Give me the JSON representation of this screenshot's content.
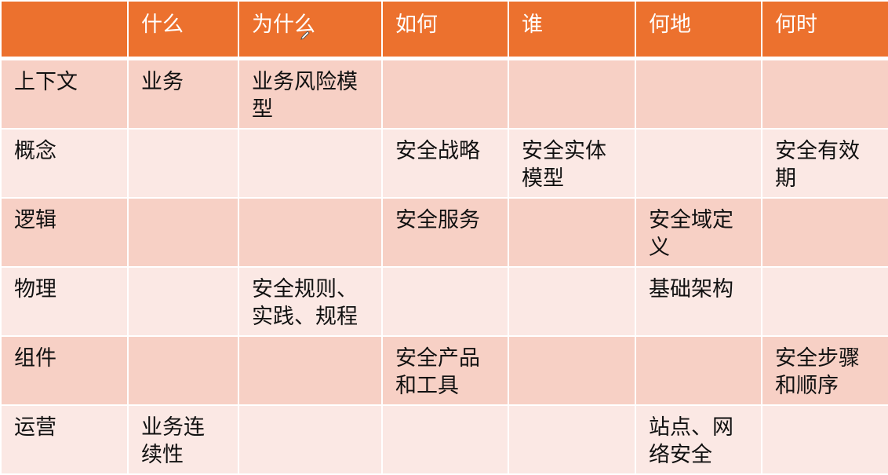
{
  "colors": {
    "header": "#EC712E",
    "row_odd": "#F7D0C5",
    "row_even": "#FBE8E4"
  },
  "header": [
    "",
    "什么",
    "为什么",
    "如何",
    "谁",
    "何地",
    "何时"
  ],
  "rows": [
    [
      "上下文",
      "业务",
      "业务风险模型",
      "",
      "",
      "",
      ""
    ],
    [
      "概念",
      "",
      "",
      "安全战略",
      "安全实体模型",
      "",
      "安全有效期"
    ],
    [
      "逻辑",
      "",
      "",
      "安全服务",
      "",
      "安全域定义",
      ""
    ],
    [
      "物理",
      "",
      "安全规则、实践、规程",
      "",
      "",
      "基础架构",
      ""
    ],
    [
      "组件",
      "",
      "",
      "安全产品和工具",
      "",
      "",
      "安全步骤和顺序"
    ],
    [
      "运营",
      "业务连续性",
      "",
      "",
      "",
      "站点、网络安全",
      ""
    ]
  ],
  "cursor_icon": "pencil-icon"
}
